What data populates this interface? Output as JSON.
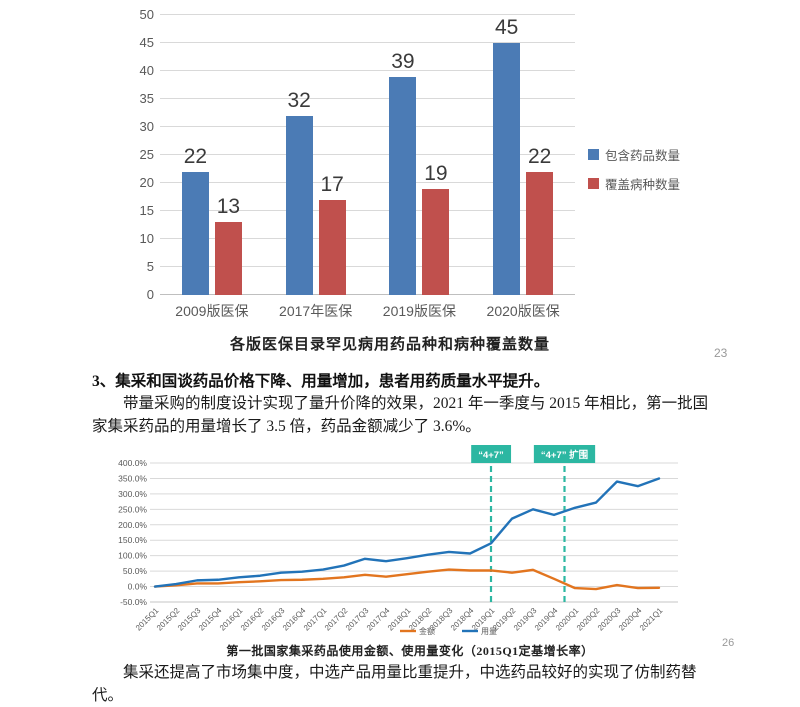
{
  "page": {
    "page_number_top": "23",
    "page_number_bottom": "26",
    "background": "#ffffff"
  },
  "captions": {
    "bar_chart": "各版医保目录罕见病用药品种和病种覆盖数量",
    "line_chart": "第一批国家集采药品使用金额、使用量变化（2015Q1定基增长率）"
  },
  "section": {
    "heading": "3、集采和国谈药品价格下降、用量增加，患者用药质量水平提升。",
    "paragraph": "带量采购的制度设计实现了量升价降的效果，2021 年一季度与 2015 年相比，第一批国家集采药品的用量增长了 3.5 倍，药品金额减少了 3.6%。",
    "closing_paragraph": "集采还提高了市场集中度，中选产品用量比重提升，中选药品较好的实现了仿制药替代。"
  },
  "colors": {
    "bar_blue": "#4b7bb5",
    "bar_red": "#c0504d",
    "line_blue": "#2273b8",
    "line_orange": "#e2751f",
    "annotation_teal": "#2cb7a2",
    "gridline": "#d9d9d9",
    "axis_text": "#595959"
  },
  "chart_data": [
    {
      "type": "bar",
      "title": "各版医保目录罕见病用药品种和病种覆盖数量",
      "categories": [
        "2009版医保",
        "2017年医保",
        "2019版医保",
        "2020版医保"
      ],
      "series": [
        {
          "name": "包含药品数量",
          "color": "#4b7bb5",
          "values": [
            22,
            32,
            39,
            45
          ]
        },
        {
          "name": "覆盖病种数量",
          "color": "#c0504d",
          "values": [
            13,
            17,
            19,
            22
          ]
        }
      ],
      "ylim": [
        0,
        50
      ],
      "ytick_step": 5,
      "grid": true,
      "legend_position": "right",
      "value_labels": true
    },
    {
      "type": "line",
      "title": "第一批国家集采药品使用金额、使用量变化（2015Q1定基增长率）",
      "x": [
        "2015Q1",
        "2015Q2",
        "2015Q3",
        "2015Q4",
        "2016Q1",
        "2016Q2",
        "2016Q3",
        "2016Q4",
        "2017Q1",
        "2017Q2",
        "2017Q3",
        "2017Q4",
        "2018Q1",
        "2018Q2",
        "2018Q3",
        "2018Q4",
        "2019Q1",
        "2019Q2",
        "2019Q3",
        "2019Q4",
        "2020Q1",
        "2020Q2",
        "2020Q3",
        "2020Q4",
        "2021Q1"
      ],
      "series": [
        {
          "name": "金额",
          "color": "#e2751f",
          "values": [
            0,
            4,
            10,
            10,
            14,
            17,
            21,
            22,
            25,
            30,
            38,
            32,
            40,
            48,
            55,
            52,
            52,
            45,
            54,
            25,
            -5,
            -8,
            5,
            -5,
            -4
          ]
        },
        {
          "name": "用量",
          "color": "#2273b8",
          "values": [
            0,
            8,
            20,
            22,
            30,
            35,
            45,
            48,
            55,
            68,
            90,
            82,
            92,
            103,
            112,
            107,
            140,
            220,
            250,
            232,
            255,
            272,
            340,
            325,
            350
          ]
        }
      ],
      "ylim": [
        -50,
        400
      ],
      "ytick_step": 50,
      "ytick_suffix": ".0%",
      "grid": true,
      "legend_position": "bottom",
      "annotations": [
        {
          "label": "“4+7”",
          "x": "2019Q1",
          "x_offset_quarters": 0,
          "color": "#2cb7a2"
        },
        {
          "label": "“4+7” 扩围",
          "x": "2019Q4",
          "x_offset_quarters": 0.5,
          "color": "#2cb7a2"
        }
      ]
    }
  ]
}
